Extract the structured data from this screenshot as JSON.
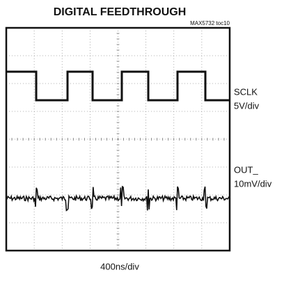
{
  "header": {
    "title": "DIGITAL FEEDTHROUGH",
    "tag": "MAX5732 toc10"
  },
  "channels": [
    {
      "name": "SCLK",
      "scale": "5V/div"
    },
    {
      "name": "OUT_",
      "scale": "10mV/div"
    }
  ],
  "timebase": "400ns/div"
}
